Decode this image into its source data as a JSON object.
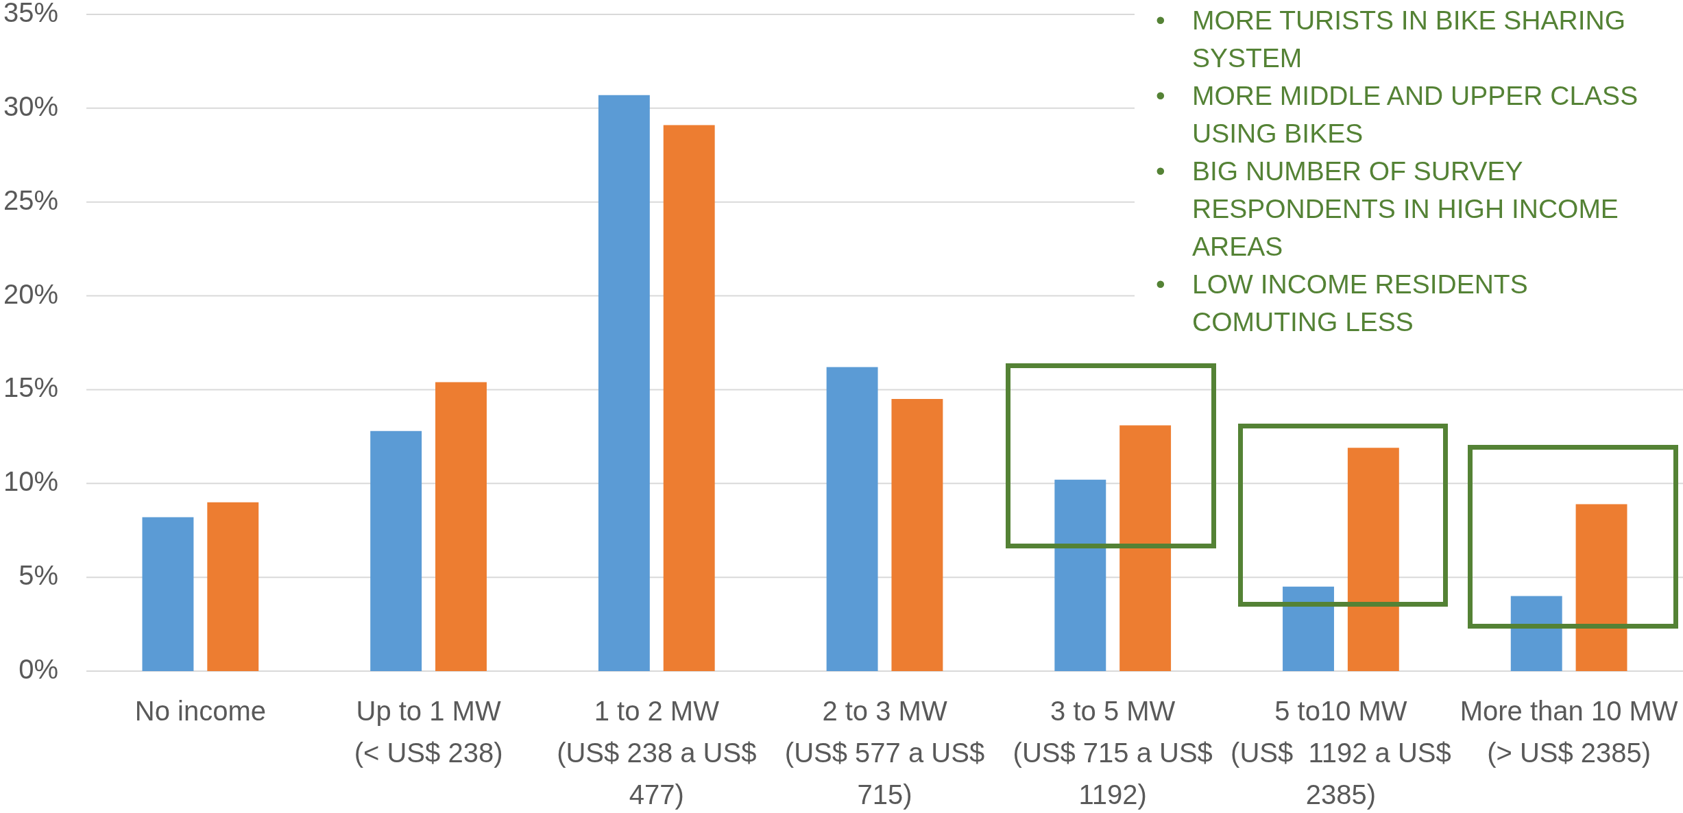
{
  "chart_data": {
    "type": "bar",
    "categories": [
      "No income",
      "Up to 1 MW\n(< US$ 238)",
      "1 to 2 MW\n(US$ 238 a US$ 477)",
      "2 to 3 MW\n(US$ 577 a US$ 715)",
      "3 to 5 MW\n(US$ 715 a US$ 1192)",
      "5 to10 MW\n(US$  1192 a US$ 2385)",
      "More than 10 MW\n(> US$ 2385)"
    ],
    "series": [
      {
        "color": "#5b9bd5",
        "values": [
          8.2,
          12.8,
          30.7,
          16.2,
          10.2,
          4.5,
          4.0
        ]
      },
      {
        "color": "#ed7d31",
        "values": [
          9.0,
          15.4,
          29.1,
          14.5,
          13.1,
          11.9,
          8.9
        ]
      }
    ],
    "ylim": [
      0,
      35
    ],
    "yticks": [
      {
        "value": 0,
        "label": "0%"
      },
      {
        "value": 5,
        "label": "5%"
      },
      {
        "value": 10,
        "label": "10%"
      },
      {
        "value": 15,
        "label": "15%"
      },
      {
        "value": 20,
        "label": "20%"
      },
      {
        "value": 25,
        "label": "25%"
      },
      {
        "value": 30,
        "label": "30%"
      },
      {
        "value": 35,
        "label": "35%"
      }
    ],
    "grid": "y",
    "annotations": [
      "• MORE TURISTS IN BIKE SHARING SYSTEM",
      "• MORE MIDDLE AND UPPER CLASS USING BIKES",
      "• BIG NUMBER OF SURVEY RESPONDENTS IN HIGH INCOME AREAS",
      "• LOW INCOME RESIDENTS COMUTING LESS"
    ]
  }
}
